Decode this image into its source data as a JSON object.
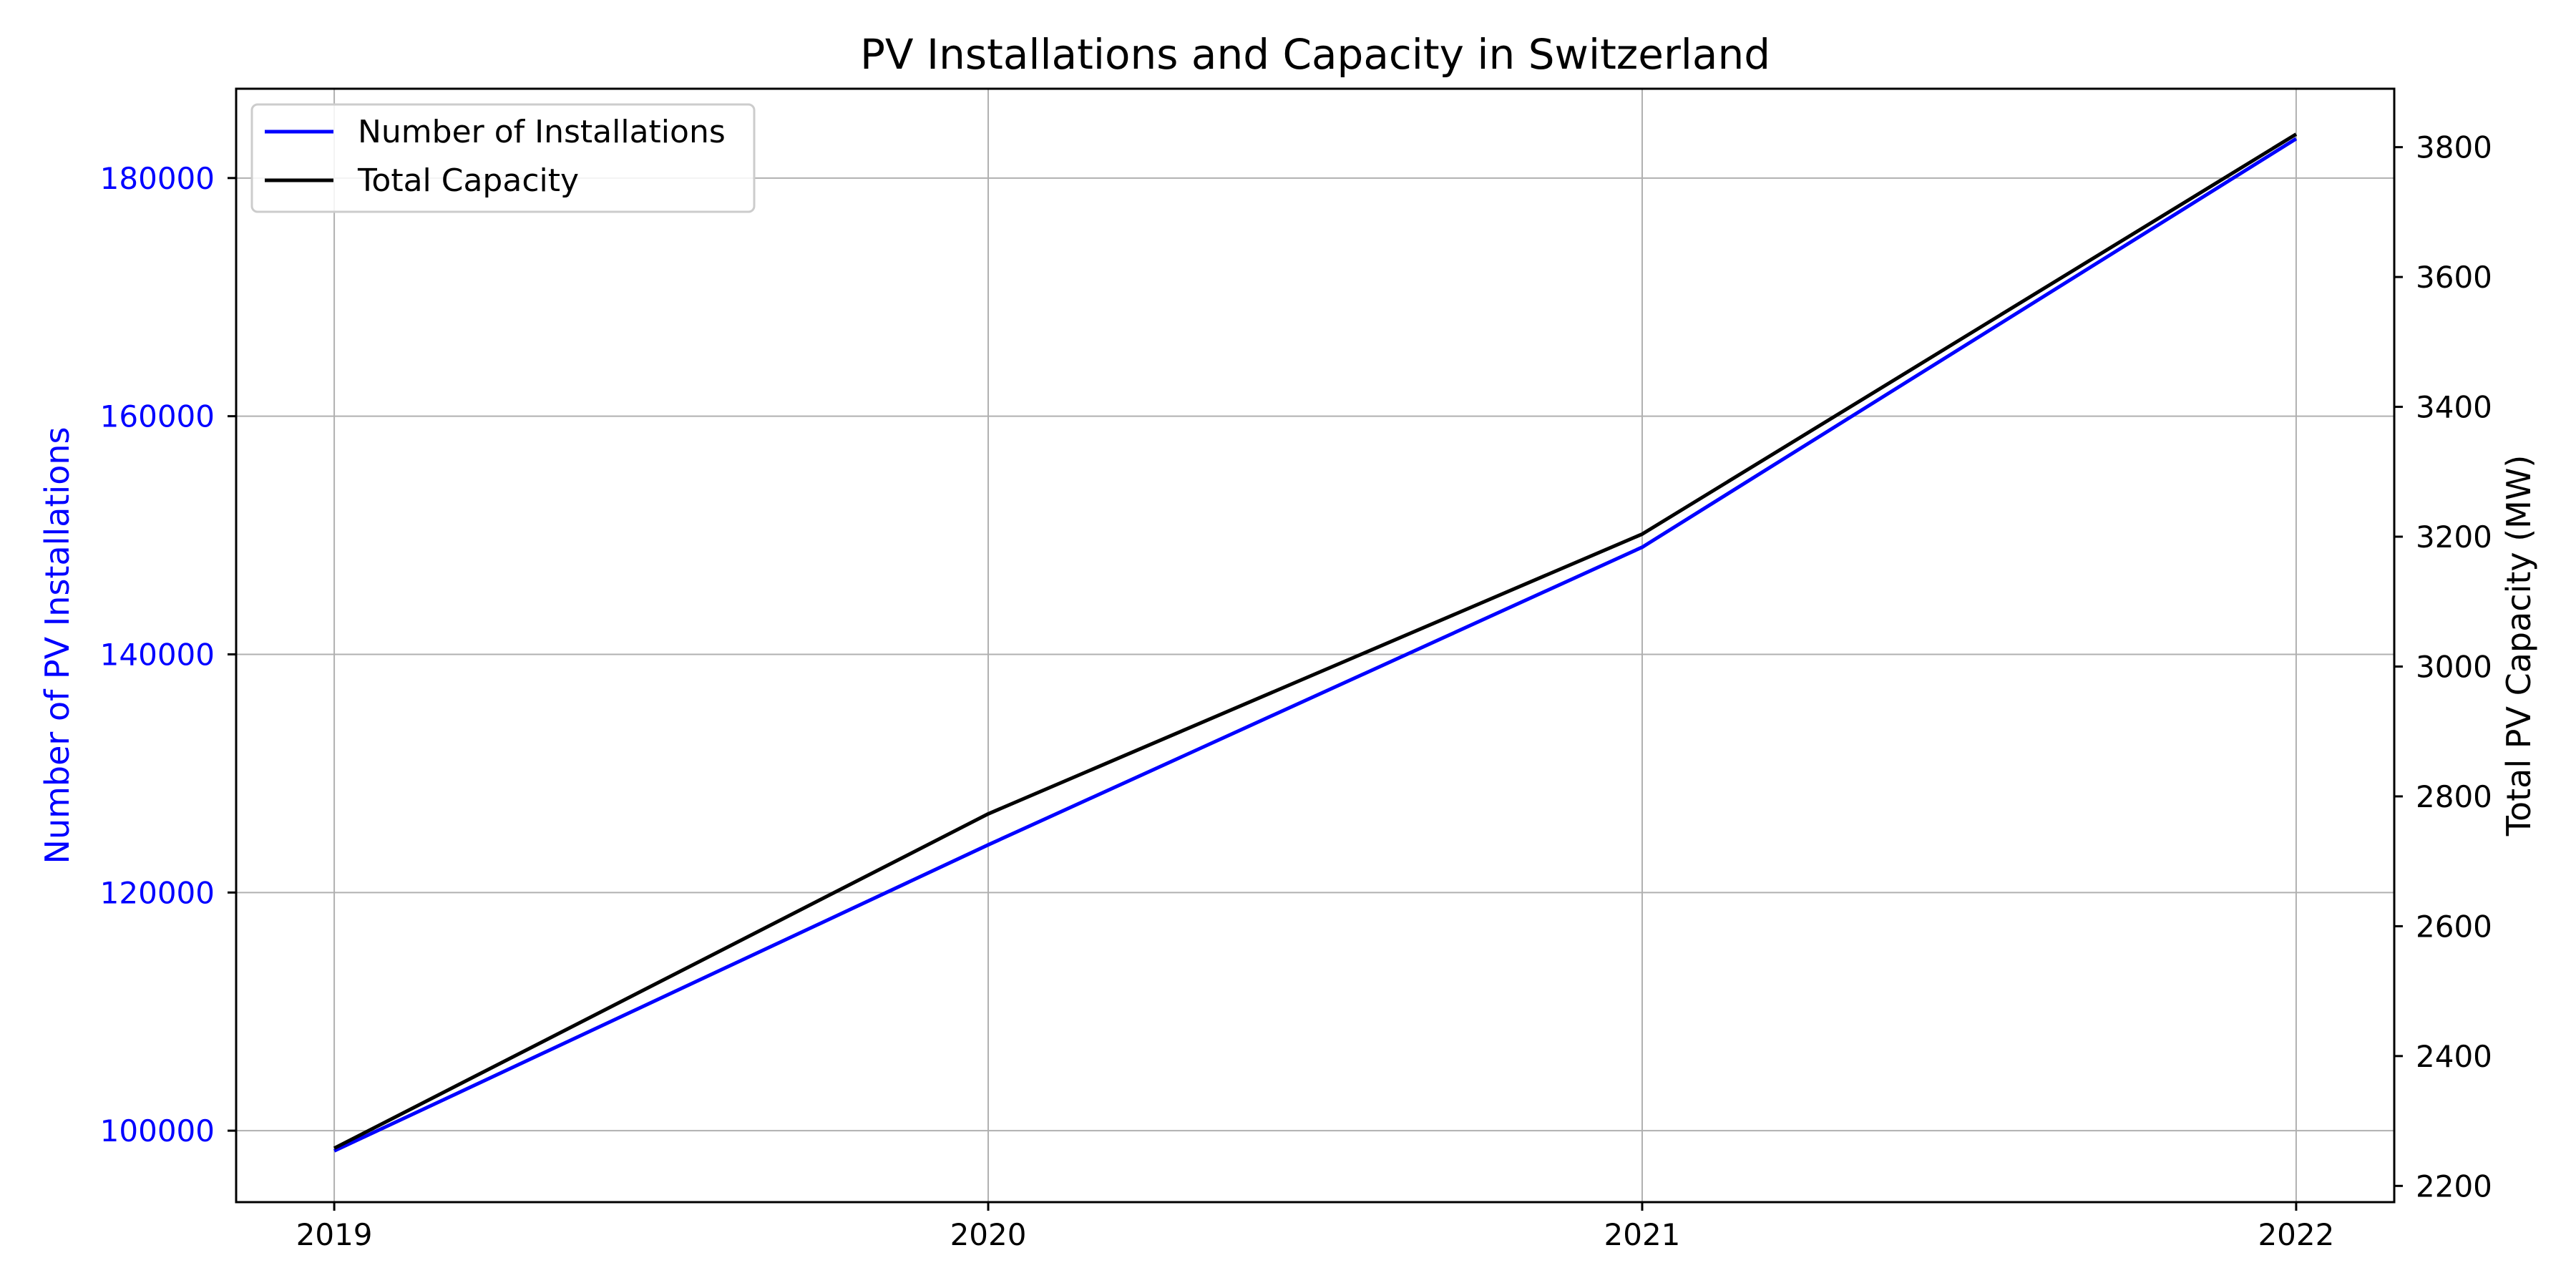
{
  "chart_data": {
    "type": "line",
    "title": "PV Installations and Capacity in Switzerland",
    "x": [
      2019,
      2020,
      2021,
      2022
    ],
    "xticks": [
      "2019",
      "2020",
      "2021",
      "2022"
    ],
    "xlim": [
      2018.85,
      2022.15
    ],
    "grid": true,
    "legend_position": "top-left",
    "y_left": {
      "label": "Number of PV Installations",
      "color": "#0000ff",
      "ylim": [
        94000,
        187500
      ],
      "ticks": [
        100000,
        120000,
        140000,
        160000,
        180000
      ],
      "tick_labels": [
        "100000",
        "120000",
        "140000",
        "160000",
        "180000"
      ]
    },
    "y_right": {
      "label": "Total PV Capacity (MW)",
      "color": "#000000",
      "ylim": [
        2175,
        3890
      ],
      "ticks": [
        2200,
        2400,
        2600,
        2800,
        3000,
        3200,
        3400,
        3600,
        3800
      ],
      "tick_labels": [
        "2200",
        "2400",
        "2600",
        "2800",
        "3000",
        "3200",
        "3400",
        "3600",
        "3800"
      ]
    },
    "series": [
      {
        "name": "Number of Installations",
        "axis": "left",
        "color": "#0000ff",
        "values": [
          98300,
          124000,
          149000,
          183300
        ]
      },
      {
        "name": "Total Capacity",
        "axis": "right",
        "color": "#000000",
        "values": [
          2258,
          2773,
          3204,
          3820
        ]
      }
    ]
  }
}
